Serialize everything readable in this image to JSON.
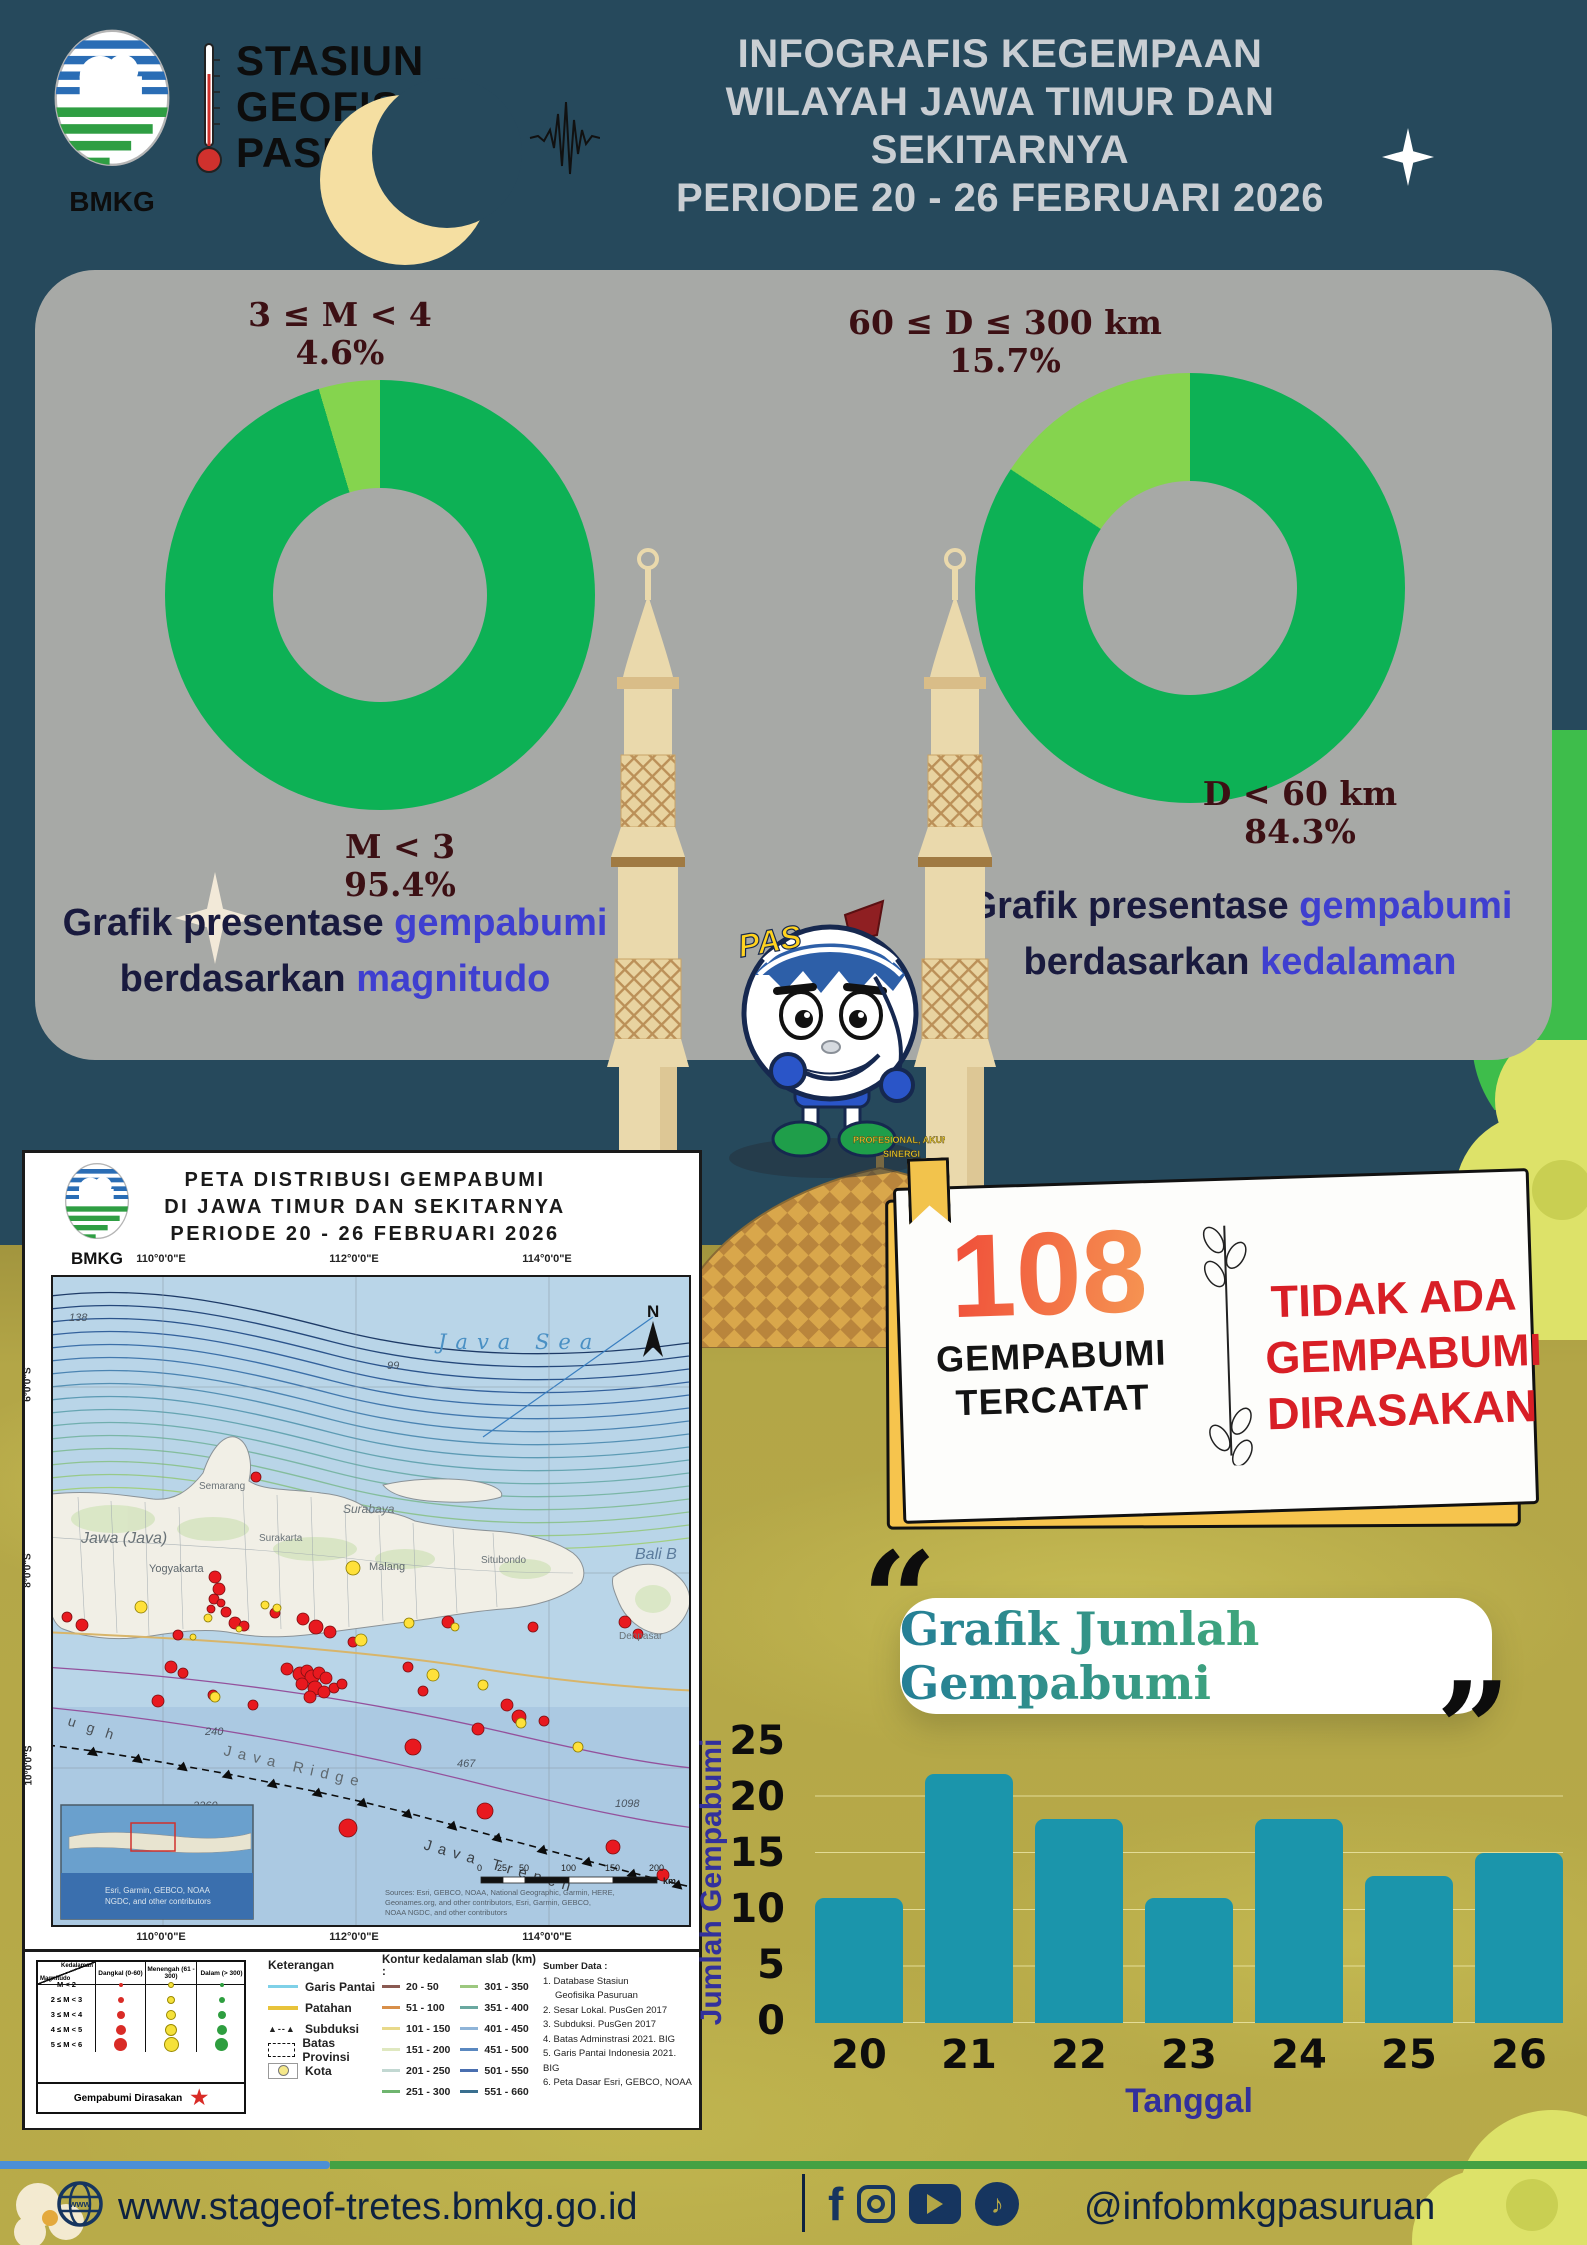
{
  "colors": {
    "sky": "#26495c",
    "panel": "#a7a9a6",
    "ground": "#b3a647",
    "donut_main": "#0db155",
    "donut_slice": "#85d44e",
    "bar": "#1b95ab",
    "accent_blue": "#3f3fd0",
    "red_alert": "#d81f26",
    "card_yellow": "#f6c44d",
    "footer_line_blue": "#4b8fd6",
    "footer_line_green": "#44a143",
    "navy": "#0e2240"
  },
  "header": {
    "station_line1": "STASIUN",
    "station_line2": "GEOFISIKA",
    "station_line3": "PASURUAN",
    "logo_caption": "BMKG",
    "title_line1": "INFOGRAFIS KEGEMPAAN",
    "title_line2": "WILAYAH JAWA TIMUR DAN SEKITARNYA",
    "title_line3": "PERIODE 20 - 26 FEBRUARI 2026"
  },
  "donut_magnitude": {
    "slice_label": "3 ≤ M < 4",
    "slice_value": "4.6%",
    "main_label": "M < 3",
    "main_value": "95.4%",
    "caption_plain1": "Grafik presentase ",
    "caption_accent1": "gempabumi",
    "caption_plain2": "berdasarkan ",
    "caption_accent2": "magnitudo",
    "colors": {
      "main": "#0db155",
      "slice": "#85d44e"
    },
    "values": {
      "main": 95.4,
      "slice": 4.6
    }
  },
  "donut_depth": {
    "slice_label": "60 ≤ D ≤ 300 km",
    "slice_value": "15.7%",
    "main_label": "D < 60 km",
    "main_value": "84.3%",
    "caption_plain1": "Grafik presentase ",
    "caption_accent1": "gempabumi",
    "caption_plain2": "berdasarkan ",
    "caption_accent2": "kedalaman",
    "colors": {
      "main": "#0db155",
      "slice": "#85d44e"
    },
    "values": {
      "main": 84.3,
      "slice": 15.7
    }
  },
  "mascot": {
    "brand": "PAS",
    "motto_line1": "PROFESIONAL, AKUNTABLE,",
    "motto_line2": "SINERGI"
  },
  "map": {
    "title_line1": "PETA DISTRIBUSI GEMPABUMI",
    "title_line2": "DI JAWA TIMUR DAN SEKITARNYA",
    "title_line3": "PERIODE 20 - 26 FEBRUARI 2026",
    "logo_caption": "BMKG",
    "lon_labels": [
      "110°0'0\"E",
      "112°0'0\"E",
      "114°0'0\"E"
    ],
    "lat_labels": [
      "6°0'0\"S",
      "8°0'0\"S",
      "10°0'0\"S"
    ],
    "sea_label": "Java Sea",
    "north_label": "N",
    "labels": {
      "jawa": "Jawa (Java)",
      "semarang": "Semarang",
      "surakarta": "Surakarta",
      "yogyakarta": "Yogyakarta",
      "malang": "Malang",
      "surabaya": "Surabaya",
      "situbondo": "Situbondo",
      "bali": "Bali B",
      "denpasar": "Denpasar",
      "java_ridge": "Java Ridge",
      "java_trench": "Java Trench",
      "trough": "u g h"
    },
    "contour_labels": [
      "138",
      "99",
      "240",
      "467",
      "1098",
      "2260"
    ],
    "inset_credit1": "Esri, Garmin, GEBCO, NOAA",
    "inset_credit2": "NGDC, and other contributors",
    "sources_line1": "Sources: Esri, GEBCO, NOAA, National Geographic, Garmin, HERE,",
    "sources_line2": "Geonames.org, and other contributors, Esri, Garmin, GEBCO,",
    "sources_line3": "NOAA NGDC, and other contributors",
    "scale_ticks": [
      "0",
      "25",
      "50",
      "100",
      "150",
      "200"
    ],
    "scale_unit": "km",
    "legend": {
      "table": {
        "header_top": "Kedalaman",
        "header_bottom": "Magnitudo",
        "cols": [
          "Dangkal (0-60)",
          "Menengah (61 - 300)",
          "Dalam (> 300)"
        ],
        "rows": [
          "M < 2",
          "2 ≤ M < 3",
          "3 ≤ M < 4",
          "4 ≤ M < 5",
          "5 ≤ M < 6"
        ],
        "felt_label": "Gempabumi Dirasakan"
      },
      "keterangan_title": "Keterangan",
      "keterangan": [
        "Garis Pantai",
        "Patahan",
        "Subduksi",
        "Batas Provinsi",
        "Kota"
      ],
      "kontur_title": "Kontur kedalaman slab (km) :",
      "kontur_col1": [
        "20 - 50",
        "51 - 100",
        "101 - 150",
        "151 - 200",
        "201 - 250",
        "251 - 300"
      ],
      "kontur_col2": [
        "301 - 350",
        "351 - 400",
        "401 - 450",
        "451 - 500",
        "501 - 550",
        "551 - 660"
      ],
      "sumber_title": "Sumber Data :",
      "sumber": [
        "1. Database Stasiun",
        "Geofisika Pasuruan",
        "2. Sesar Lokal. PusGen 2017",
        "3. Subduksi. PusGen 2017",
        "4. Batas Adminstrasi 2021. BIG",
        "5. Garis Pantai Indonesia 2021. BIG",
        "6. Peta Dasar Esri, GEBCO, NOAA"
      ]
    }
  },
  "stats_card": {
    "count": "108",
    "count_label1": "GEMPABUMI",
    "count_label2": "TERCATAT",
    "right_line1": "TIDAK ADA",
    "right_line2": "GEMPABUMI",
    "right_line3": "DIRASAKAN"
  },
  "chart_section": {
    "quote_open": "“",
    "quote_close": "”"
  },
  "chart_data": [
    {
      "type": "bar",
      "title": "Grafik Jumlah Gempabumi",
      "categories": [
        "20",
        "21",
        "22",
        "23",
        "24",
        "25",
        "26"
      ],
      "values": [
        11,
        22,
        18,
        11,
        18,
        13,
        15
      ],
      "xlabel": "Tanggal",
      "ylabel": "Jumlah Gempabumi",
      "ylim": [
        0,
        25
      ],
      "yticks": [
        0,
        5,
        10,
        15,
        20,
        25
      ],
      "bar_color": "#1b95ab",
      "grid": true,
      "legend_position": "none"
    },
    {
      "type": "pie",
      "title": "Grafik presentase gempabumi berdasarkan magnitudo",
      "labels": [
        "M < 3",
        "3 ≤ M < 4"
      ],
      "values": [
        95.4,
        4.6
      ],
      "colors": [
        "#0db155",
        "#85d44e"
      ]
    },
    {
      "type": "pie",
      "title": "Grafik presentase gempabumi berdasarkan kedalaman",
      "labels": [
        "D < 60 km",
        "60 ≤ D ≤ 300 km"
      ],
      "values": [
        84.3,
        15.7
      ],
      "colors": [
        "#0db155",
        "#85d44e"
      ]
    }
  ],
  "footer": {
    "url": "www.stageof-tretes.bmkg.go.id",
    "handle": "@infobmkgpasuruan",
    "globe_text": "www"
  }
}
